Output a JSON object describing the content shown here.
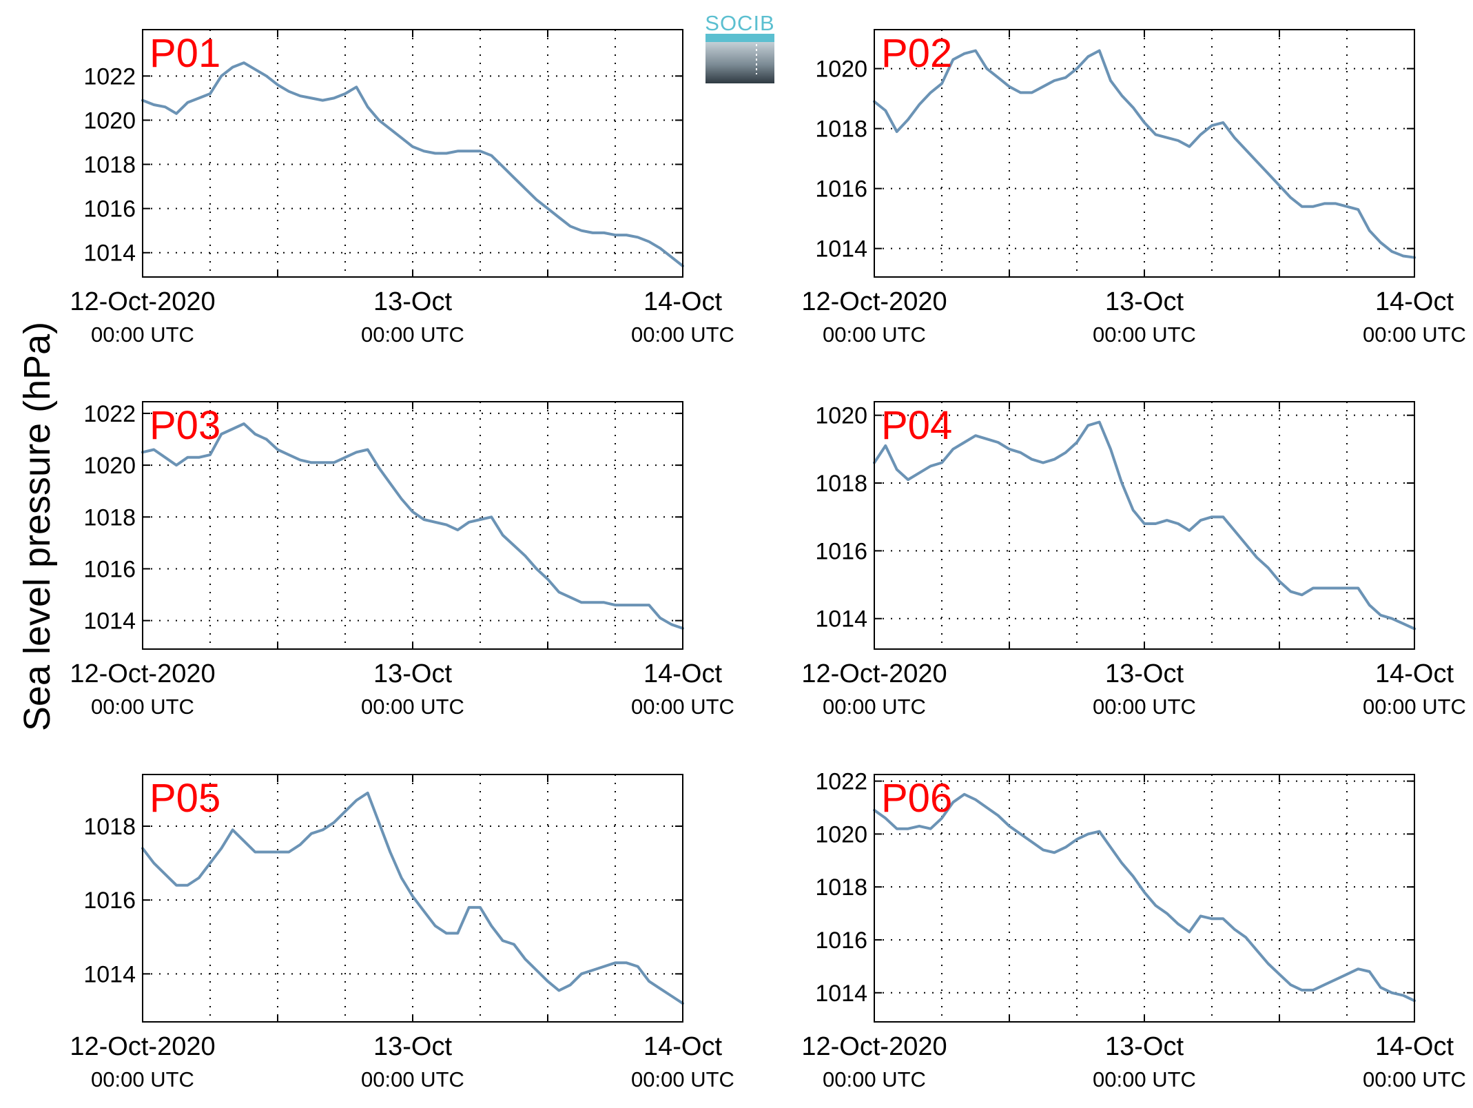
{
  "figure": {
    "ylabel": "Sea level pressure (hPa)",
    "logo": {
      "text": "SOCIB"
    }
  },
  "colors": {
    "line": "#6b93b5",
    "label": "#ff0000",
    "axis": "#000000",
    "grid": "#000000"
  },
  "chart_data": [
    {
      "type": "line",
      "label": "P01",
      "xlim": [
        0,
        48
      ],
      "ylim": [
        1012.9,
        1024.1
      ],
      "yticks": [
        1014,
        1016,
        1018,
        1020,
        1022
      ],
      "xticks": [
        0,
        24,
        48
      ],
      "xticklabels": [
        [
          "12-Oct-2020",
          "00:00 UTC"
        ],
        [
          "13-Oct",
          "00:00 UTC"
        ],
        [
          "14-Oct",
          "00:00 UTC"
        ]
      ],
      "x": [
        0,
        1,
        2,
        3,
        4,
        5,
        6,
        7,
        8,
        9,
        10,
        11,
        12,
        13,
        14,
        15,
        16,
        17,
        18,
        19,
        20,
        21,
        22,
        23,
        24,
        25,
        26,
        27,
        28,
        29,
        30,
        31,
        32,
        33,
        34,
        35,
        36,
        37,
        38,
        39,
        40,
        41,
        42,
        43,
        44,
        45,
        46,
        47,
        48
      ],
      "y": [
        1020.9,
        1020.7,
        1020.6,
        1020.3,
        1020.8,
        1021.0,
        1021.2,
        1022.0,
        1022.4,
        1022.6,
        1022.3,
        1022.0,
        1021.6,
        1021.3,
        1021.1,
        1021.0,
        1020.9,
        1021.0,
        1021.2,
        1021.5,
        1020.6,
        1020.0,
        1019.6,
        1019.2,
        1018.8,
        1018.6,
        1018.5,
        1018.5,
        1018.6,
        1018.6,
        1018.6,
        1018.4,
        1017.9,
        1017.4,
        1016.9,
        1016.4,
        1016.0,
        1015.6,
        1015.2,
        1015.0,
        1014.9,
        1014.9,
        1014.8,
        1014.8,
        1014.7,
        1014.5,
        1014.2,
        1013.8,
        1013.4
      ]
    },
    {
      "type": "line",
      "label": "P02",
      "xlim": [
        0,
        48
      ],
      "ylim": [
        1013.05,
        1021.3
      ],
      "yticks": [
        1014,
        1016,
        1018,
        1020
      ],
      "xticks": [
        0,
        24,
        48
      ],
      "xticklabels": [
        [
          "12-Oct-2020",
          "00:00 UTC"
        ],
        [
          "13-Oct",
          "00:00 UTC"
        ],
        [
          "14-Oct",
          "00:00 UTC"
        ]
      ],
      "x": [
        0,
        1,
        2,
        3,
        4,
        5,
        6,
        7,
        8,
        9,
        10,
        11,
        12,
        13,
        14,
        15,
        16,
        17,
        18,
        19,
        20,
        21,
        22,
        23,
        24,
        25,
        26,
        27,
        28,
        29,
        30,
        31,
        32,
        33,
        34,
        35,
        36,
        37,
        38,
        39,
        40,
        41,
        42,
        43,
        44,
        45,
        46,
        47,
        48
      ],
      "y": [
        1018.9,
        1018.6,
        1017.9,
        1018.3,
        1018.8,
        1019.2,
        1019.5,
        1020.3,
        1020.5,
        1020.6,
        1020.0,
        1019.7,
        1019.4,
        1019.2,
        1019.2,
        1019.4,
        1019.6,
        1019.7,
        1020.0,
        1020.4,
        1020.6,
        1019.6,
        1019.1,
        1018.7,
        1018.2,
        1017.8,
        1017.7,
        1017.6,
        1017.4,
        1017.8,
        1018.1,
        1018.2,
        1017.7,
        1017.3,
        1016.9,
        1016.5,
        1016.1,
        1015.7,
        1015.4,
        1015.4,
        1015.5,
        1015.5,
        1015.4,
        1015.3,
        1014.6,
        1014.2,
        1013.9,
        1013.75,
        1013.7
      ]
    },
    {
      "type": "line",
      "label": "P03",
      "xlim": [
        0,
        48
      ],
      "ylim": [
        1012.9,
        1022.45
      ],
      "yticks": [
        1014,
        1016,
        1018,
        1020,
        1022
      ],
      "xticks": [
        0,
        24,
        48
      ],
      "xticklabels": [
        [
          "12-Oct-2020",
          "00:00 UTC"
        ],
        [
          "13-Oct",
          "00:00 UTC"
        ],
        [
          "14-Oct",
          "00:00 UTC"
        ]
      ],
      "x": [
        0,
        1,
        2,
        3,
        4,
        5,
        6,
        7,
        8,
        9,
        10,
        11,
        12,
        13,
        14,
        15,
        16,
        17,
        18,
        19,
        20,
        21,
        22,
        23,
        24,
        25,
        26,
        27,
        28,
        29,
        30,
        31,
        32,
        33,
        34,
        35,
        36,
        37,
        38,
        39,
        40,
        41,
        42,
        43,
        44,
        45,
        46,
        47,
        48
      ],
      "y": [
        1020.5,
        1020.6,
        1020.3,
        1020.0,
        1020.3,
        1020.3,
        1020.4,
        1021.2,
        1021.4,
        1021.6,
        1021.2,
        1021.0,
        1020.6,
        1020.4,
        1020.2,
        1020.1,
        1020.1,
        1020.1,
        1020.3,
        1020.5,
        1020.6,
        1019.9,
        1019.3,
        1018.7,
        1018.2,
        1017.9,
        1017.8,
        1017.7,
        1017.5,
        1017.8,
        1017.9,
        1018.0,
        1017.3,
        1016.9,
        1016.5,
        1016.0,
        1015.6,
        1015.1,
        1014.9,
        1014.7,
        1014.7,
        1014.7,
        1014.6,
        1014.6,
        1014.6,
        1014.6,
        1014.1,
        1013.85,
        1013.7
      ]
    },
    {
      "type": "line",
      "label": "P04",
      "xlim": [
        0,
        48
      ],
      "ylim": [
        1013.1,
        1020.4
      ],
      "yticks": [
        1014,
        1016,
        1018,
        1020
      ],
      "xticks": [
        0,
        24,
        48
      ],
      "xticklabels": [
        [
          "12-Oct-2020",
          "00:00 UTC"
        ],
        [
          "13-Oct",
          "00:00 UTC"
        ],
        [
          "14-Oct",
          "00:00 UTC"
        ]
      ],
      "x": [
        0,
        1,
        2,
        3,
        4,
        5,
        6,
        7,
        8,
        9,
        10,
        11,
        12,
        13,
        14,
        15,
        16,
        17,
        18,
        19,
        20,
        21,
        22,
        23,
        24,
        25,
        26,
        27,
        28,
        29,
        30,
        31,
        32,
        33,
        34,
        35,
        36,
        37,
        38,
        39,
        40,
        41,
        42,
        43,
        44,
        45,
        46,
        47,
        48
      ],
      "y": [
        1018.6,
        1019.1,
        1018.4,
        1018.1,
        1018.3,
        1018.5,
        1018.6,
        1019.0,
        1019.2,
        1019.4,
        1019.3,
        1019.2,
        1019.0,
        1018.9,
        1018.7,
        1018.6,
        1018.7,
        1018.9,
        1019.2,
        1019.7,
        1019.8,
        1019.0,
        1018.0,
        1017.2,
        1016.8,
        1016.8,
        1016.9,
        1016.8,
        1016.6,
        1016.9,
        1017.0,
        1017.0,
        1016.6,
        1016.2,
        1015.8,
        1015.5,
        1015.1,
        1014.8,
        1014.7,
        1014.9,
        1014.9,
        1014.9,
        1014.9,
        1014.9,
        1014.4,
        1014.1,
        1014.0,
        1013.85,
        1013.7
      ]
    },
    {
      "type": "line",
      "label": "P05",
      "xlim": [
        0,
        48
      ],
      "ylim": [
        1012.7,
        1019.4
      ],
      "yticks": [
        1014,
        1016,
        1018
      ],
      "xticks": [
        0,
        24,
        48
      ],
      "xticklabels": [
        [
          "12-Oct-2020",
          "00:00 UTC"
        ],
        [
          "13-Oct",
          "00:00 UTC"
        ],
        [
          "14-Oct",
          "00:00 UTC"
        ]
      ],
      "x": [
        0,
        1,
        2,
        3,
        4,
        5,
        6,
        7,
        8,
        9,
        10,
        11,
        12,
        13,
        14,
        15,
        16,
        17,
        18,
        19,
        20,
        21,
        22,
        23,
        24,
        25,
        26,
        27,
        28,
        29,
        30,
        31,
        32,
        33,
        34,
        35,
        36,
        37,
        38,
        39,
        40,
        41,
        42,
        43,
        44,
        45,
        46,
        47,
        48
      ],
      "y": [
        1017.4,
        1017.0,
        1016.7,
        1016.4,
        1016.4,
        1016.6,
        1017.0,
        1017.4,
        1017.9,
        1017.6,
        1017.3,
        1017.3,
        1017.3,
        1017.3,
        1017.5,
        1017.8,
        1017.9,
        1018.1,
        1018.4,
        1018.7,
        1018.9,
        1018.1,
        1017.3,
        1016.6,
        1016.1,
        1015.7,
        1015.3,
        1015.1,
        1015.1,
        1015.8,
        1015.8,
        1015.3,
        1014.9,
        1014.8,
        1014.4,
        1014.1,
        1013.8,
        1013.55,
        1013.7,
        1014.0,
        1014.1,
        1014.2,
        1014.3,
        1014.3,
        1014.2,
        1013.8,
        1013.6,
        1013.4,
        1013.2
      ]
    },
    {
      "type": "line",
      "label": "P06",
      "xlim": [
        0,
        48
      ],
      "ylim": [
        1012.9,
        1022.25
      ],
      "yticks": [
        1014,
        1016,
        1018,
        1020,
        1022
      ],
      "xticks": [
        0,
        24,
        48
      ],
      "xticklabels": [
        [
          "12-Oct-2020",
          "00:00 UTC"
        ],
        [
          "13-Oct",
          "00:00 UTC"
        ],
        [
          "14-Oct",
          "00:00 UTC"
        ]
      ],
      "x": [
        0,
        1,
        2,
        3,
        4,
        5,
        6,
        7,
        8,
        9,
        10,
        11,
        12,
        13,
        14,
        15,
        16,
        17,
        18,
        19,
        20,
        21,
        22,
        23,
        24,
        25,
        26,
        27,
        28,
        29,
        30,
        31,
        32,
        33,
        34,
        35,
        36,
        37,
        38,
        39,
        40,
        41,
        42,
        43,
        44,
        45,
        46,
        47,
        48
      ],
      "y": [
        1020.9,
        1020.6,
        1020.2,
        1020.2,
        1020.3,
        1020.2,
        1020.6,
        1021.2,
        1021.5,
        1021.3,
        1021.0,
        1020.7,
        1020.3,
        1020.0,
        1019.7,
        1019.4,
        1019.3,
        1019.5,
        1019.8,
        1020.0,
        1020.1,
        1019.5,
        1018.9,
        1018.4,
        1017.8,
        1017.3,
        1017.0,
        1016.6,
        1016.3,
        1016.9,
        1016.8,
        1016.8,
        1016.4,
        1016.1,
        1015.6,
        1015.1,
        1014.7,
        1014.3,
        1014.1,
        1014.1,
        1014.3,
        1014.5,
        1014.7,
        1014.9,
        1014.8,
        1014.2,
        1014.0,
        1013.9,
        1013.7
      ]
    }
  ]
}
